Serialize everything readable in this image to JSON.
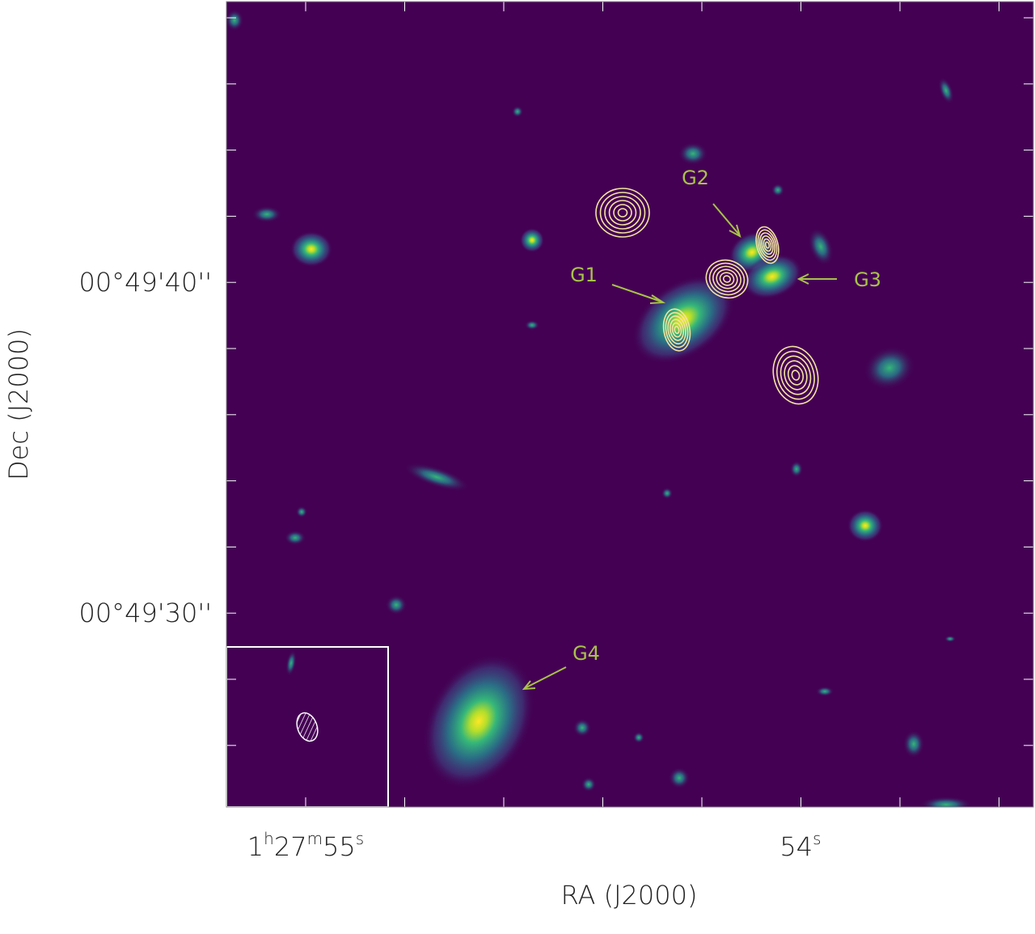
{
  "figure": {
    "labels": [
      "G1",
      "G2",
      "G3",
      "G4"
    ],
    "dec_ticks": [
      "00°49'40''",
      "00°49'30''"
    ],
    "dec_axis_label": "Dec (J2000)",
    "ra_ticks": [
      {
        "hours": "1",
        "h": "h",
        "minutes": "27",
        "m": "m",
        "seconds": "55",
        "s": "s"
      },
      {
        "seconds": "54",
        "s": "s"
      }
    ],
    "ra_axis_label": "RA (J2000)"
  }
}
